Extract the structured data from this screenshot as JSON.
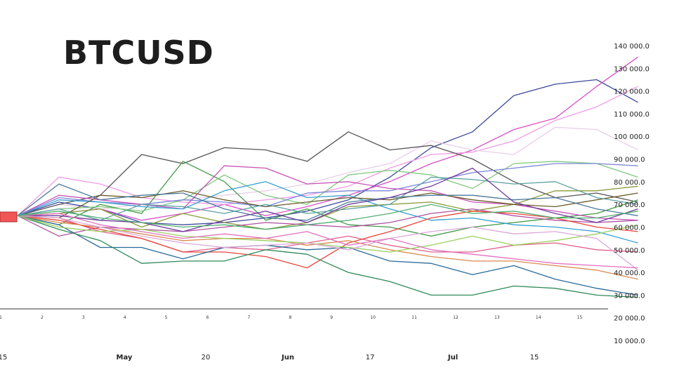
{
  "chart_data": {
    "type": "line",
    "title": "BTCUSD",
    "ylim": [
      10000,
      140000
    ],
    "yticks": [
      140000,
      130000,
      120000,
      110000,
      100000,
      90000,
      80000,
      70000,
      60000,
      50000,
      40000,
      30000,
      20000,
      10000
    ],
    "ytick_labels": [
      "140 000.0",
      "130 000.0",
      "120 000.0",
      "110 000.0",
      "100 000.0",
      "90 000.0",
      "80 000.0",
      "70 000.0",
      "60 000.0",
      "50 000.0",
      "40 000.0",
      "30 000.0",
      "20 000.0",
      "10 000.0"
    ],
    "x": [
      0,
      1,
      2,
      3,
      4,
      5,
      6,
      7,
      8,
      9,
      10,
      11,
      12,
      13,
      14
    ],
    "x_step_labels": [
      "1",
      "2",
      "3",
      "4",
      "5",
      "6",
      "7",
      "8",
      "9",
      "10",
      "11",
      "12",
      "13",
      "14",
      "15"
    ],
    "date_labels": [
      {
        "label": "15",
        "bold": false
      },
      {
        "label": "May",
        "bold": true
      },
      {
        "label": "20",
        "bold": false
      },
      {
        "label": "Jun",
        "bold": true
      },
      {
        "label": "17",
        "bold": false
      },
      {
        "label": "Jul",
        "bold": true
      },
      {
        "label": "15",
        "bold": false
      }
    ],
    "grid": false,
    "start_value": 65000,
    "series": [
      {
        "color": "#3b4a9a",
        "values": [
          71000,
          68000,
          62000,
          61000,
          62000,
          64000,
          67000,
          72000,
          82000,
          95000,
          102000,
          118000,
          123000,
          125000,
          115000
        ]
      },
      {
        "color": "#d84fc8",
        "values": [
          66000,
          68000,
          63000,
          66000,
          70000,
          65000,
          69000,
          74000,
          80000,
          88000,
          94000,
          103000,
          108000,
          122000,
          135000
        ]
      },
      {
        "color": "#f09ae8",
        "values": [
          82000,
          79000,
          73000,
          71000,
          70000,
          72000,
          74000,
          78000,
          86000,
          92000,
          93000,
          98000,
          107000,
          113000,
          122000
        ]
      },
      {
        "color": "#e8cfe8",
        "values": [
          70000,
          68000,
          70000,
          72000,
          74000,
          76000,
          79000,
          84000,
          88000,
          98000,
          94000,
          92000,
          104000,
          103000,
          94000
        ]
      },
      {
        "color": "#555555",
        "values": [
          70000,
          74000,
          92000,
          88000,
          95000,
          94000,
          89000,
          102000,
          94000,
          96000,
          90000,
          80000,
          73000,
          75000,
          71000
        ]
      },
      {
        "color": "#3f9a45",
        "values": [
          61000,
          70000,
          66000,
          89000,
          80000,
          63000,
          68000,
          61000,
          60000,
          56000,
          60000,
          62000,
          64000,
          66000,
          72000
        ]
      },
      {
        "color": "#7fc97f",
        "values": [
          68000,
          69000,
          67000,
          72000,
          83000,
          74000,
          70000,
          83000,
          85000,
          83000,
          77000,
          88000,
          89000,
          88000,
          82000
        ]
      },
      {
        "color": "#7a86d8",
        "values": [
          73000,
          71000,
          70000,
          72000,
          71000,
          69000,
          75000,
          76000,
          76000,
          80000,
          84000,
          86000,
          88000,
          88000,
          87000
        ]
      },
      {
        "color": "#c853b8",
        "values": [
          74000,
          72000,
          70000,
          68000,
          87000,
          86000,
          79000,
          80000,
          77000,
          76000,
          71000,
          70000,
          67000,
          64000,
          63000
        ]
      },
      {
        "color": "#35a0d0",
        "values": [
          72000,
          71000,
          69000,
          68000,
          76000,
          80000,
          73000,
          74000,
          68000,
          63000,
          64000,
          61000,
          60000,
          58000,
          53000
        ]
      },
      {
        "color": "#8a9a3a",
        "values": [
          66000,
          68000,
          60000,
          66000,
          62000,
          59000,
          62000,
          69000,
          70000,
          71000,
          67000,
          70000,
          76000,
          76000,
          78000
        ]
      },
      {
        "color": "#6a5a2a",
        "values": [
          64000,
          74000,
          73000,
          76000,
          72000,
          69000,
          71000,
          73000,
          72000,
          75000,
          72000,
          70000,
          69000,
          72000,
          75000
        ]
      },
      {
        "color": "#4a7a9a",
        "values": [
          79000,
          72000,
          74000,
          75000,
          68000,
          64000,
          63000,
          71000,
          73000,
          74000,
          74000,
          72000,
          73000,
          68000,
          65000
        ]
      },
      {
        "color": "#5aa0a0",
        "values": [
          68000,
          63000,
          70000,
          69000,
          66000,
          70000,
          66000,
          68000,
          70000,
          82000,
          81000,
          79000,
          80000,
          73000,
          70000
        ]
      },
      {
        "color": "#b050a0",
        "values": [
          56000,
          60000,
          59000,
          58000,
          60000,
          62000,
          61000,
          60000,
          62000,
          66000,
          68000,
          65000,
          63000,
          62000,
          63000
        ]
      },
      {
        "color": "#e0608a",
        "values": [
          64000,
          58000,
          55000,
          49000,
          51000,
          50000,
          53000,
          56000,
          52000,
          49000,
          49000,
          52000,
          53000,
          50000,
          49000
        ]
      },
      {
        "color": "#e8453a",
        "values": [
          63000,
          59000,
          55000,
          49000,
          49000,
          47000,
          42000,
          53000,
          58000,
          64000,
          67000,
          66000,
          64000,
          60000,
          58000
        ]
      },
      {
        "color": "#d98a50",
        "values": [
          62000,
          60000,
          57000,
          54000,
          55000,
          55000,
          52000,
          54000,
          50000,
          47000,
          45000,
          45000,
          43000,
          41000,
          37000
        ]
      },
      {
        "color": "#2a6a9a",
        "values": [
          61000,
          51000,
          51000,
          46000,
          51000,
          52000,
          50000,
          51000,
          45000,
          44000,
          39000,
          43000,
          37000,
          33000,
          30000
        ]
      },
      {
        "color": "#2f8a5a",
        "values": [
          59000,
          54000,
          44000,
          45000,
          45000,
          50000,
          48000,
          40000,
          36000,
          30000,
          30000,
          34000,
          33000,
          30000,
          29000
        ]
      },
      {
        "color": "#6e3a9a",
        "values": [
          65000,
          63000,
          62000,
          58000,
          63000,
          67000,
          62000,
          70000,
          73000,
          78000,
          86000,
          71000,
          66000,
          62000,
          68000
        ]
      },
      {
        "color": "#9ad060",
        "values": [
          60000,
          58000,
          59000,
          56000,
          55000,
          54000,
          53000,
          51000,
          49000,
          52000,
          56000,
          52000,
          54000,
          57000,
          61000
        ]
      },
      {
        "color": "#d8a8d8",
        "values": [
          64000,
          60000,
          56000,
          53000,
          51000,
          52000,
          53000,
          50000,
          55000,
          58000,
          60000,
          57000,
          58000,
          55000,
          41000
        ]
      },
      {
        "color": "#e070c0",
        "values": [
          66000,
          61000,
          58000,
          55000,
          57000,
          55000,
          58000,
          52000,
          55000,
          50000,
          48000,
          46000,
          44000,
          43000,
          42000
        ]
      },
      {
        "color": "#50b070",
        "values": [
          67000,
          64000,
          62000,
          60000,
          61000,
          59000,
          61000,
          63000,
          66000,
          70000,
          66000,
          67000,
          64000,
          64000,
          67000
        ]
      }
    ]
  }
}
